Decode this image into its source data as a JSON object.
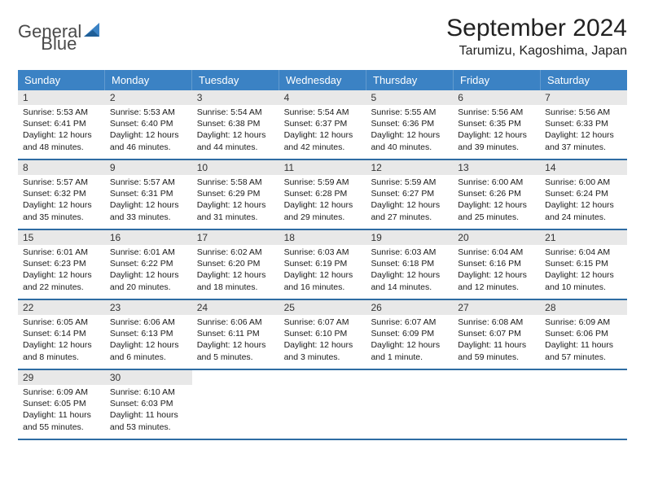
{
  "brand": {
    "word1": "General",
    "word2": "Blue"
  },
  "title": "September 2024",
  "location": "Tarumizu, Kagoshima, Japan",
  "colors": {
    "header_bg": "#3b82c4",
    "header_text": "#ffffff",
    "daynum_bg": "#e8e8e8",
    "week_border": "#2e6ca3",
    "page_bg": "#ffffff",
    "text": "#1a1a1a"
  },
  "dows": [
    "Sunday",
    "Monday",
    "Tuesday",
    "Wednesday",
    "Thursday",
    "Friday",
    "Saturday"
  ],
  "weeks": [
    [
      {
        "n": "1",
        "sunrise": "Sunrise: 5:53 AM",
        "sunset": "Sunset: 6:41 PM",
        "day1": "Daylight: 12 hours",
        "day2": "and 48 minutes."
      },
      {
        "n": "2",
        "sunrise": "Sunrise: 5:53 AM",
        "sunset": "Sunset: 6:40 PM",
        "day1": "Daylight: 12 hours",
        "day2": "and 46 minutes."
      },
      {
        "n": "3",
        "sunrise": "Sunrise: 5:54 AM",
        "sunset": "Sunset: 6:38 PM",
        "day1": "Daylight: 12 hours",
        "day2": "and 44 minutes."
      },
      {
        "n": "4",
        "sunrise": "Sunrise: 5:54 AM",
        "sunset": "Sunset: 6:37 PM",
        "day1": "Daylight: 12 hours",
        "day2": "and 42 minutes."
      },
      {
        "n": "5",
        "sunrise": "Sunrise: 5:55 AM",
        "sunset": "Sunset: 6:36 PM",
        "day1": "Daylight: 12 hours",
        "day2": "and 40 minutes."
      },
      {
        "n": "6",
        "sunrise": "Sunrise: 5:56 AM",
        "sunset": "Sunset: 6:35 PM",
        "day1": "Daylight: 12 hours",
        "day2": "and 39 minutes."
      },
      {
        "n": "7",
        "sunrise": "Sunrise: 5:56 AM",
        "sunset": "Sunset: 6:33 PM",
        "day1": "Daylight: 12 hours",
        "day2": "and 37 minutes."
      }
    ],
    [
      {
        "n": "8",
        "sunrise": "Sunrise: 5:57 AM",
        "sunset": "Sunset: 6:32 PM",
        "day1": "Daylight: 12 hours",
        "day2": "and 35 minutes."
      },
      {
        "n": "9",
        "sunrise": "Sunrise: 5:57 AM",
        "sunset": "Sunset: 6:31 PM",
        "day1": "Daylight: 12 hours",
        "day2": "and 33 minutes."
      },
      {
        "n": "10",
        "sunrise": "Sunrise: 5:58 AM",
        "sunset": "Sunset: 6:29 PM",
        "day1": "Daylight: 12 hours",
        "day2": "and 31 minutes."
      },
      {
        "n": "11",
        "sunrise": "Sunrise: 5:59 AM",
        "sunset": "Sunset: 6:28 PM",
        "day1": "Daylight: 12 hours",
        "day2": "and 29 minutes."
      },
      {
        "n": "12",
        "sunrise": "Sunrise: 5:59 AM",
        "sunset": "Sunset: 6:27 PM",
        "day1": "Daylight: 12 hours",
        "day2": "and 27 minutes."
      },
      {
        "n": "13",
        "sunrise": "Sunrise: 6:00 AM",
        "sunset": "Sunset: 6:26 PM",
        "day1": "Daylight: 12 hours",
        "day2": "and 25 minutes."
      },
      {
        "n": "14",
        "sunrise": "Sunrise: 6:00 AM",
        "sunset": "Sunset: 6:24 PM",
        "day1": "Daylight: 12 hours",
        "day2": "and 24 minutes."
      }
    ],
    [
      {
        "n": "15",
        "sunrise": "Sunrise: 6:01 AM",
        "sunset": "Sunset: 6:23 PM",
        "day1": "Daylight: 12 hours",
        "day2": "and 22 minutes."
      },
      {
        "n": "16",
        "sunrise": "Sunrise: 6:01 AM",
        "sunset": "Sunset: 6:22 PM",
        "day1": "Daylight: 12 hours",
        "day2": "and 20 minutes."
      },
      {
        "n": "17",
        "sunrise": "Sunrise: 6:02 AM",
        "sunset": "Sunset: 6:20 PM",
        "day1": "Daylight: 12 hours",
        "day2": "and 18 minutes."
      },
      {
        "n": "18",
        "sunrise": "Sunrise: 6:03 AM",
        "sunset": "Sunset: 6:19 PM",
        "day1": "Daylight: 12 hours",
        "day2": "and 16 minutes."
      },
      {
        "n": "19",
        "sunrise": "Sunrise: 6:03 AM",
        "sunset": "Sunset: 6:18 PM",
        "day1": "Daylight: 12 hours",
        "day2": "and 14 minutes."
      },
      {
        "n": "20",
        "sunrise": "Sunrise: 6:04 AM",
        "sunset": "Sunset: 6:16 PM",
        "day1": "Daylight: 12 hours",
        "day2": "and 12 minutes."
      },
      {
        "n": "21",
        "sunrise": "Sunrise: 6:04 AM",
        "sunset": "Sunset: 6:15 PM",
        "day1": "Daylight: 12 hours",
        "day2": "and 10 minutes."
      }
    ],
    [
      {
        "n": "22",
        "sunrise": "Sunrise: 6:05 AM",
        "sunset": "Sunset: 6:14 PM",
        "day1": "Daylight: 12 hours",
        "day2": "and 8 minutes."
      },
      {
        "n": "23",
        "sunrise": "Sunrise: 6:06 AM",
        "sunset": "Sunset: 6:13 PM",
        "day1": "Daylight: 12 hours",
        "day2": "and 6 minutes."
      },
      {
        "n": "24",
        "sunrise": "Sunrise: 6:06 AM",
        "sunset": "Sunset: 6:11 PM",
        "day1": "Daylight: 12 hours",
        "day2": "and 5 minutes."
      },
      {
        "n": "25",
        "sunrise": "Sunrise: 6:07 AM",
        "sunset": "Sunset: 6:10 PM",
        "day1": "Daylight: 12 hours",
        "day2": "and 3 minutes."
      },
      {
        "n": "26",
        "sunrise": "Sunrise: 6:07 AM",
        "sunset": "Sunset: 6:09 PM",
        "day1": "Daylight: 12 hours",
        "day2": "and 1 minute."
      },
      {
        "n": "27",
        "sunrise": "Sunrise: 6:08 AM",
        "sunset": "Sunset: 6:07 PM",
        "day1": "Daylight: 11 hours",
        "day2": "and 59 minutes."
      },
      {
        "n": "28",
        "sunrise": "Sunrise: 6:09 AM",
        "sunset": "Sunset: 6:06 PM",
        "day1": "Daylight: 11 hours",
        "day2": "and 57 minutes."
      }
    ],
    [
      {
        "n": "29",
        "sunrise": "Sunrise: 6:09 AM",
        "sunset": "Sunset: 6:05 PM",
        "day1": "Daylight: 11 hours",
        "day2": "and 55 minutes."
      },
      {
        "n": "30",
        "sunrise": "Sunrise: 6:10 AM",
        "sunset": "Sunset: 6:03 PM",
        "day1": "Daylight: 11 hours",
        "day2": "and 53 minutes."
      },
      null,
      null,
      null,
      null,
      null
    ]
  ]
}
